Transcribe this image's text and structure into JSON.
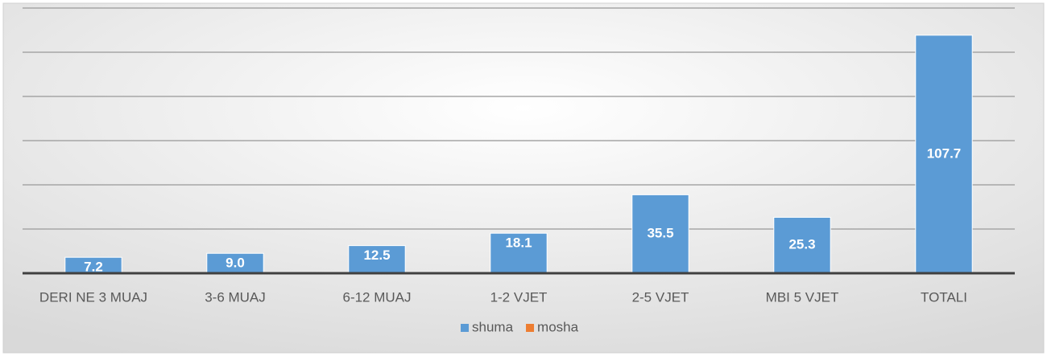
{
  "chart_data": {
    "type": "bar",
    "categories": [
      "DERI NE 3 MUAJ",
      "3-6 MUAJ",
      "6-12 MUAJ",
      "1-2 VJET",
      "2-5 VJET",
      "MBI 5 VJET",
      "TOTALI"
    ],
    "series": [
      {
        "name": "shuma",
        "color": "#5b9bd5",
        "values": [
          7.2,
          9.0,
          12.5,
          18.1,
          35.5,
          25.3,
          107.7
        ],
        "value_labels": [
          "7.2",
          "9.0",
          "12.5",
          "18.1",
          "35.5",
          "25.3",
          "107.7"
        ]
      },
      {
        "name": "mosha",
        "color": "#ed7d31",
        "values": [
          null,
          null,
          null,
          null,
          null,
          null,
          null
        ]
      }
    ],
    "ylim": [
      0,
      120
    ],
    "yticks": [
      0,
      20,
      40,
      60,
      80,
      100,
      120
    ],
    "grid": true,
    "legend": "bottom"
  }
}
